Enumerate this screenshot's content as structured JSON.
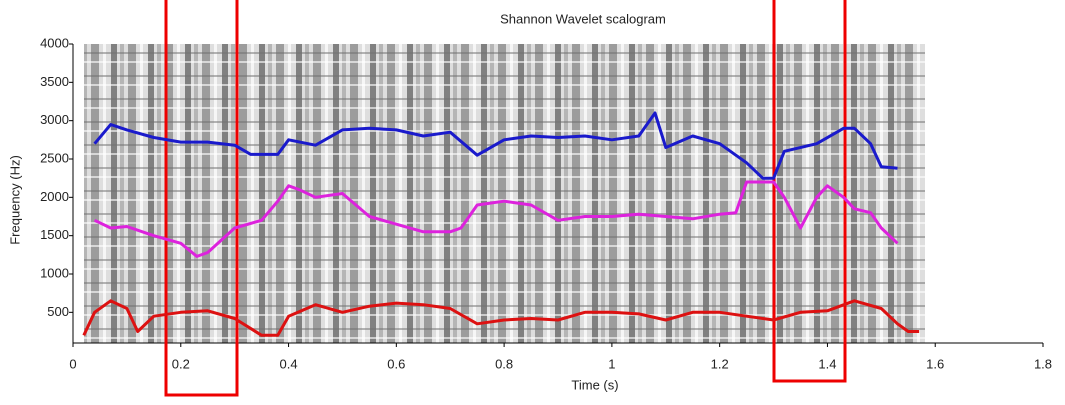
{
  "chart_data": {
    "type": "line",
    "title": "Shannon Wavelet scalogram",
    "x_label": "Time (s)",
    "y_label": "Frequency (Hz)",
    "xlim": [
      0,
      1.8
    ],
    "xticks": [
      0,
      0.2,
      0.4,
      0.6,
      0.8,
      1,
      1.2,
      1.4,
      1.6,
      1.8
    ],
    "ylim": [
      100,
      4000
    ],
    "yticks": [
      500,
      1000,
      1500,
      2000,
      2500,
      3000,
      3500,
      4000
    ],
    "series": [
      {
        "color": "#1a1acc",
        "x": [
          0.04,
          0.07,
          0.1,
          0.15,
          0.2,
          0.25,
          0.3,
          0.33,
          0.38,
          0.4,
          0.45,
          0.5,
          0.55,
          0.6,
          0.65,
          0.7,
          0.75,
          0.8,
          0.85,
          0.9,
          0.95,
          1.0,
          1.05,
          1.08,
          1.1,
          1.15,
          1.2,
          1.25,
          1.28,
          1.3,
          1.32,
          1.38,
          1.43,
          1.45,
          1.48,
          1.5,
          1.53
        ],
        "values": [
          2700,
          2950,
          2880,
          2780,
          2720,
          2720,
          2680,
          2560,
          2560,
          2750,
          2680,
          2880,
          2900,
          2880,
          2800,
          2850,
          2550,
          2750,
          2800,
          2780,
          2800,
          2750,
          2800,
          3100,
          2650,
          2800,
          2700,
          2450,
          2250,
          2250,
          2600,
          2700,
          2900,
          2900,
          2700,
          2400,
          2380
        ]
      },
      {
        "color": "#dd22dd",
        "x": [
          0.04,
          0.07,
          0.1,
          0.15,
          0.2,
          0.23,
          0.25,
          0.3,
          0.35,
          0.38,
          0.4,
          0.42,
          0.45,
          0.5,
          0.55,
          0.6,
          0.65,
          0.7,
          0.72,
          0.75,
          0.8,
          0.85,
          0.9,
          0.95,
          1.0,
          1.05,
          1.1,
          1.15,
          1.2,
          1.23,
          1.25,
          1.3,
          1.32,
          1.35,
          1.38,
          1.4,
          1.43,
          1.45,
          1.48,
          1.5,
          1.53
        ],
        "values": [
          1700,
          1600,
          1620,
          1500,
          1400,
          1230,
          1280,
          1600,
          1700,
          1950,
          2150,
          2100,
          2000,
          2050,
          1750,
          1650,
          1550,
          1550,
          1600,
          1900,
          1950,
          1900,
          1700,
          1750,
          1750,
          1780,
          1750,
          1720,
          1780,
          1800,
          2200,
          2200,
          2000,
          1600,
          2000,
          2150,
          2000,
          1850,
          1800,
          1600,
          1400
        ]
      },
      {
        "color": "#dd1111",
        "x": [
          0.02,
          0.04,
          0.07,
          0.1,
          0.12,
          0.15,
          0.2,
          0.25,
          0.3,
          0.35,
          0.38,
          0.4,
          0.45,
          0.5,
          0.55,
          0.6,
          0.65,
          0.7,
          0.75,
          0.8,
          0.85,
          0.9,
          0.95,
          1.0,
          1.05,
          1.1,
          1.15,
          1.2,
          1.25,
          1.3,
          1.35,
          1.4,
          1.45,
          1.5,
          1.53,
          1.55,
          1.57
        ],
        "values": [
          200,
          500,
          650,
          550,
          250,
          450,
          500,
          520,
          420,
          200,
          200,
          450,
          600,
          500,
          580,
          620,
          600,
          550,
          350,
          400,
          420,
          400,
          500,
          500,
          480,
          400,
          500,
          500,
          450,
          400,
          500,
          520,
          650,
          550,
          350,
          250,
          250
        ]
      }
    ]
  }
}
